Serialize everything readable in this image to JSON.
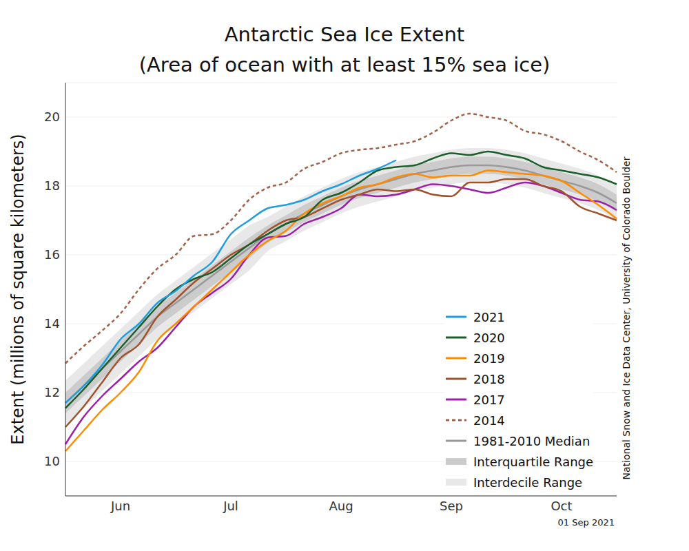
{
  "chart_data": {
    "type": "line",
    "title": "Antarctic Sea Ice Extent",
    "subtitle": "(Area of ocean with at least 15% sea ice)",
    "y_label": "Extent (millions of square kilometers)",
    "annotations": [
      "National Snow and Ice Data Center, University of Colorado Boulder",
      "01 Sep 2021"
    ],
    "categories": [
      null,
      null,
      null,
      "Jun",
      null,
      null,
      null,
      null,
      null,
      "Jul",
      null,
      null,
      null,
      null,
      null,
      "Aug",
      null,
      null,
      null,
      null,
      null,
      "Sep",
      null,
      null,
      null,
      null,
      null,
      "Oct",
      null,
      null,
      null
    ],
    "ylim": [
      9,
      21
    ],
    "yticks": [
      10,
      12,
      14,
      16,
      18,
      20
    ],
    "grid": true,
    "legend": "lower right",
    "series": [
      {
        "name": "2021",
        "color": "#1f9de0",
        "values": [
          11.7,
          12.2,
          12.8,
          13.55,
          14.0,
          14.6,
          14.95,
          15.4,
          15.8,
          16.6,
          17.0,
          17.35,
          17.45,
          17.6,
          17.85,
          18.05,
          18.3,
          18.5,
          18.75,
          null,
          null,
          null,
          null,
          null,
          null,
          null,
          null,
          null,
          null,
          null,
          null
        ]
      },
      {
        "name": "2020",
        "color": "#1a5e2a",
        "values": [
          11.55,
          12.1,
          12.7,
          13.3,
          13.9,
          14.5,
          15.0,
          15.3,
          15.5,
          15.9,
          16.3,
          16.6,
          16.9,
          17.1,
          17.6,
          17.8,
          18.1,
          18.45,
          18.55,
          18.6,
          18.8,
          18.95,
          18.9,
          19.0,
          18.9,
          18.8,
          18.55,
          18.45,
          18.35,
          18.25,
          18.05
        ]
      },
      {
        "name": "2019",
        "color": "#ff8c00",
        "values": [
          10.3,
          10.9,
          11.5,
          12.0,
          12.6,
          13.5,
          14.0,
          14.5,
          15.0,
          15.5,
          16.0,
          16.4,
          16.7,
          17.2,
          17.5,
          17.7,
          17.95,
          18.05,
          18.25,
          18.35,
          18.25,
          18.3,
          18.3,
          18.45,
          18.4,
          18.35,
          18.3,
          18.15,
          17.8,
          17.45,
          17.05
        ]
      },
      {
        "name": "2018",
        "color": "#a0522d",
        "values": [
          11.0,
          11.6,
          12.3,
          13.0,
          13.4,
          14.2,
          14.7,
          15.2,
          15.6,
          16.0,
          16.3,
          16.7,
          17.0,
          17.1,
          17.35,
          17.6,
          17.75,
          17.9,
          17.85,
          17.9,
          17.75,
          17.7,
          18.1,
          18.1,
          18.2,
          18.2,
          18.0,
          17.85,
          17.4,
          17.2,
          17.0
        ]
      },
      {
        "name": "2017",
        "color": "#9b1fa8",
        "values": [
          10.5,
          11.3,
          11.9,
          12.4,
          12.9,
          13.3,
          13.9,
          14.5,
          14.9,
          15.3,
          16.0,
          16.5,
          16.55,
          16.9,
          17.1,
          17.35,
          17.75,
          17.7,
          17.75,
          17.9,
          18.05,
          18.0,
          17.9,
          17.8,
          17.95,
          18.1,
          18.0,
          17.8,
          17.6,
          17.55,
          17.3
        ]
      },
      {
        "name": "2014",
        "color": "#a0634a",
        "line_style": "dashed",
        "values": [
          12.85,
          13.35,
          13.8,
          14.3,
          15.0,
          15.6,
          16.0,
          16.55,
          16.6,
          17.0,
          17.6,
          17.95,
          18.1,
          18.5,
          18.7,
          18.95,
          19.05,
          19.1,
          19.2,
          19.3,
          19.55,
          19.9,
          20.1,
          20.0,
          19.9,
          19.6,
          19.5,
          19.3,
          19.0,
          18.75,
          18.4
        ]
      },
      {
        "name": "1981-2010 Median",
        "color": "#999999",
        "values": [
          11.7,
          12.2,
          12.7,
          13.2,
          13.7,
          14.2,
          14.6,
          15.0,
          15.4,
          15.8,
          16.2,
          16.6,
          16.9,
          17.2,
          17.45,
          17.7,
          17.9,
          18.05,
          18.2,
          18.35,
          18.45,
          18.55,
          18.6,
          18.6,
          18.55,
          18.45,
          18.3,
          18.15,
          18.0,
          17.8,
          17.5
        ]
      },
      {
        "name": "Interquartile Range",
        "color": "#cccccc",
        "type": "area",
        "values": [
          [
            11.4,
            12.0
          ],
          [
            11.9,
            12.5
          ],
          [
            12.4,
            13.0
          ],
          [
            12.9,
            13.5
          ],
          [
            13.4,
            14.0
          ],
          [
            13.9,
            14.5
          ],
          [
            14.3,
            14.9
          ],
          [
            14.7,
            15.3
          ],
          [
            15.1,
            15.7
          ],
          [
            15.5,
            16.1
          ],
          [
            15.9,
            16.5
          ],
          [
            16.35,
            16.85
          ],
          [
            16.65,
            17.15
          ],
          [
            16.95,
            17.45
          ],
          [
            17.2,
            17.7
          ],
          [
            17.45,
            17.95
          ],
          [
            17.65,
            18.15
          ],
          [
            17.8,
            18.3
          ],
          [
            17.95,
            18.45
          ],
          [
            18.1,
            18.6
          ],
          [
            18.2,
            18.7
          ],
          [
            18.3,
            18.8
          ],
          [
            18.35,
            18.85
          ],
          [
            18.35,
            18.85
          ],
          [
            18.3,
            18.8
          ],
          [
            18.2,
            18.7
          ],
          [
            18.05,
            18.55
          ],
          [
            17.9,
            18.4
          ],
          [
            17.75,
            18.25
          ],
          [
            17.55,
            18.05
          ],
          [
            17.25,
            17.75
          ]
        ]
      },
      {
        "name": "Interdecile Range",
        "color": "#e8e8e8",
        "type": "area",
        "values": [
          [
            11.05,
            12.35
          ],
          [
            11.55,
            12.85
          ],
          [
            12.05,
            13.35
          ],
          [
            12.55,
            13.85
          ],
          [
            13.05,
            14.35
          ],
          [
            13.55,
            14.85
          ],
          [
            13.95,
            15.25
          ],
          [
            14.35,
            15.65
          ],
          [
            14.75,
            16.05
          ],
          [
            15.15,
            16.45
          ],
          [
            15.55,
            16.85
          ],
          [
            16.1,
            17.1
          ],
          [
            16.4,
            17.4
          ],
          [
            16.7,
            17.7
          ],
          [
            16.95,
            17.95
          ],
          [
            17.2,
            18.2
          ],
          [
            17.4,
            18.4
          ],
          [
            17.55,
            18.55
          ],
          [
            17.7,
            18.7
          ],
          [
            17.85,
            18.85
          ],
          [
            17.95,
            18.95
          ],
          [
            18.05,
            19.05
          ],
          [
            18.1,
            19.1
          ],
          [
            18.1,
            19.1
          ],
          [
            18.05,
            19.05
          ],
          [
            17.95,
            18.95
          ],
          [
            17.8,
            18.8
          ],
          [
            17.65,
            18.65
          ],
          [
            17.5,
            18.5
          ],
          [
            17.3,
            18.3
          ],
          [
            17.0,
            18.0
          ]
        ]
      }
    ]
  }
}
